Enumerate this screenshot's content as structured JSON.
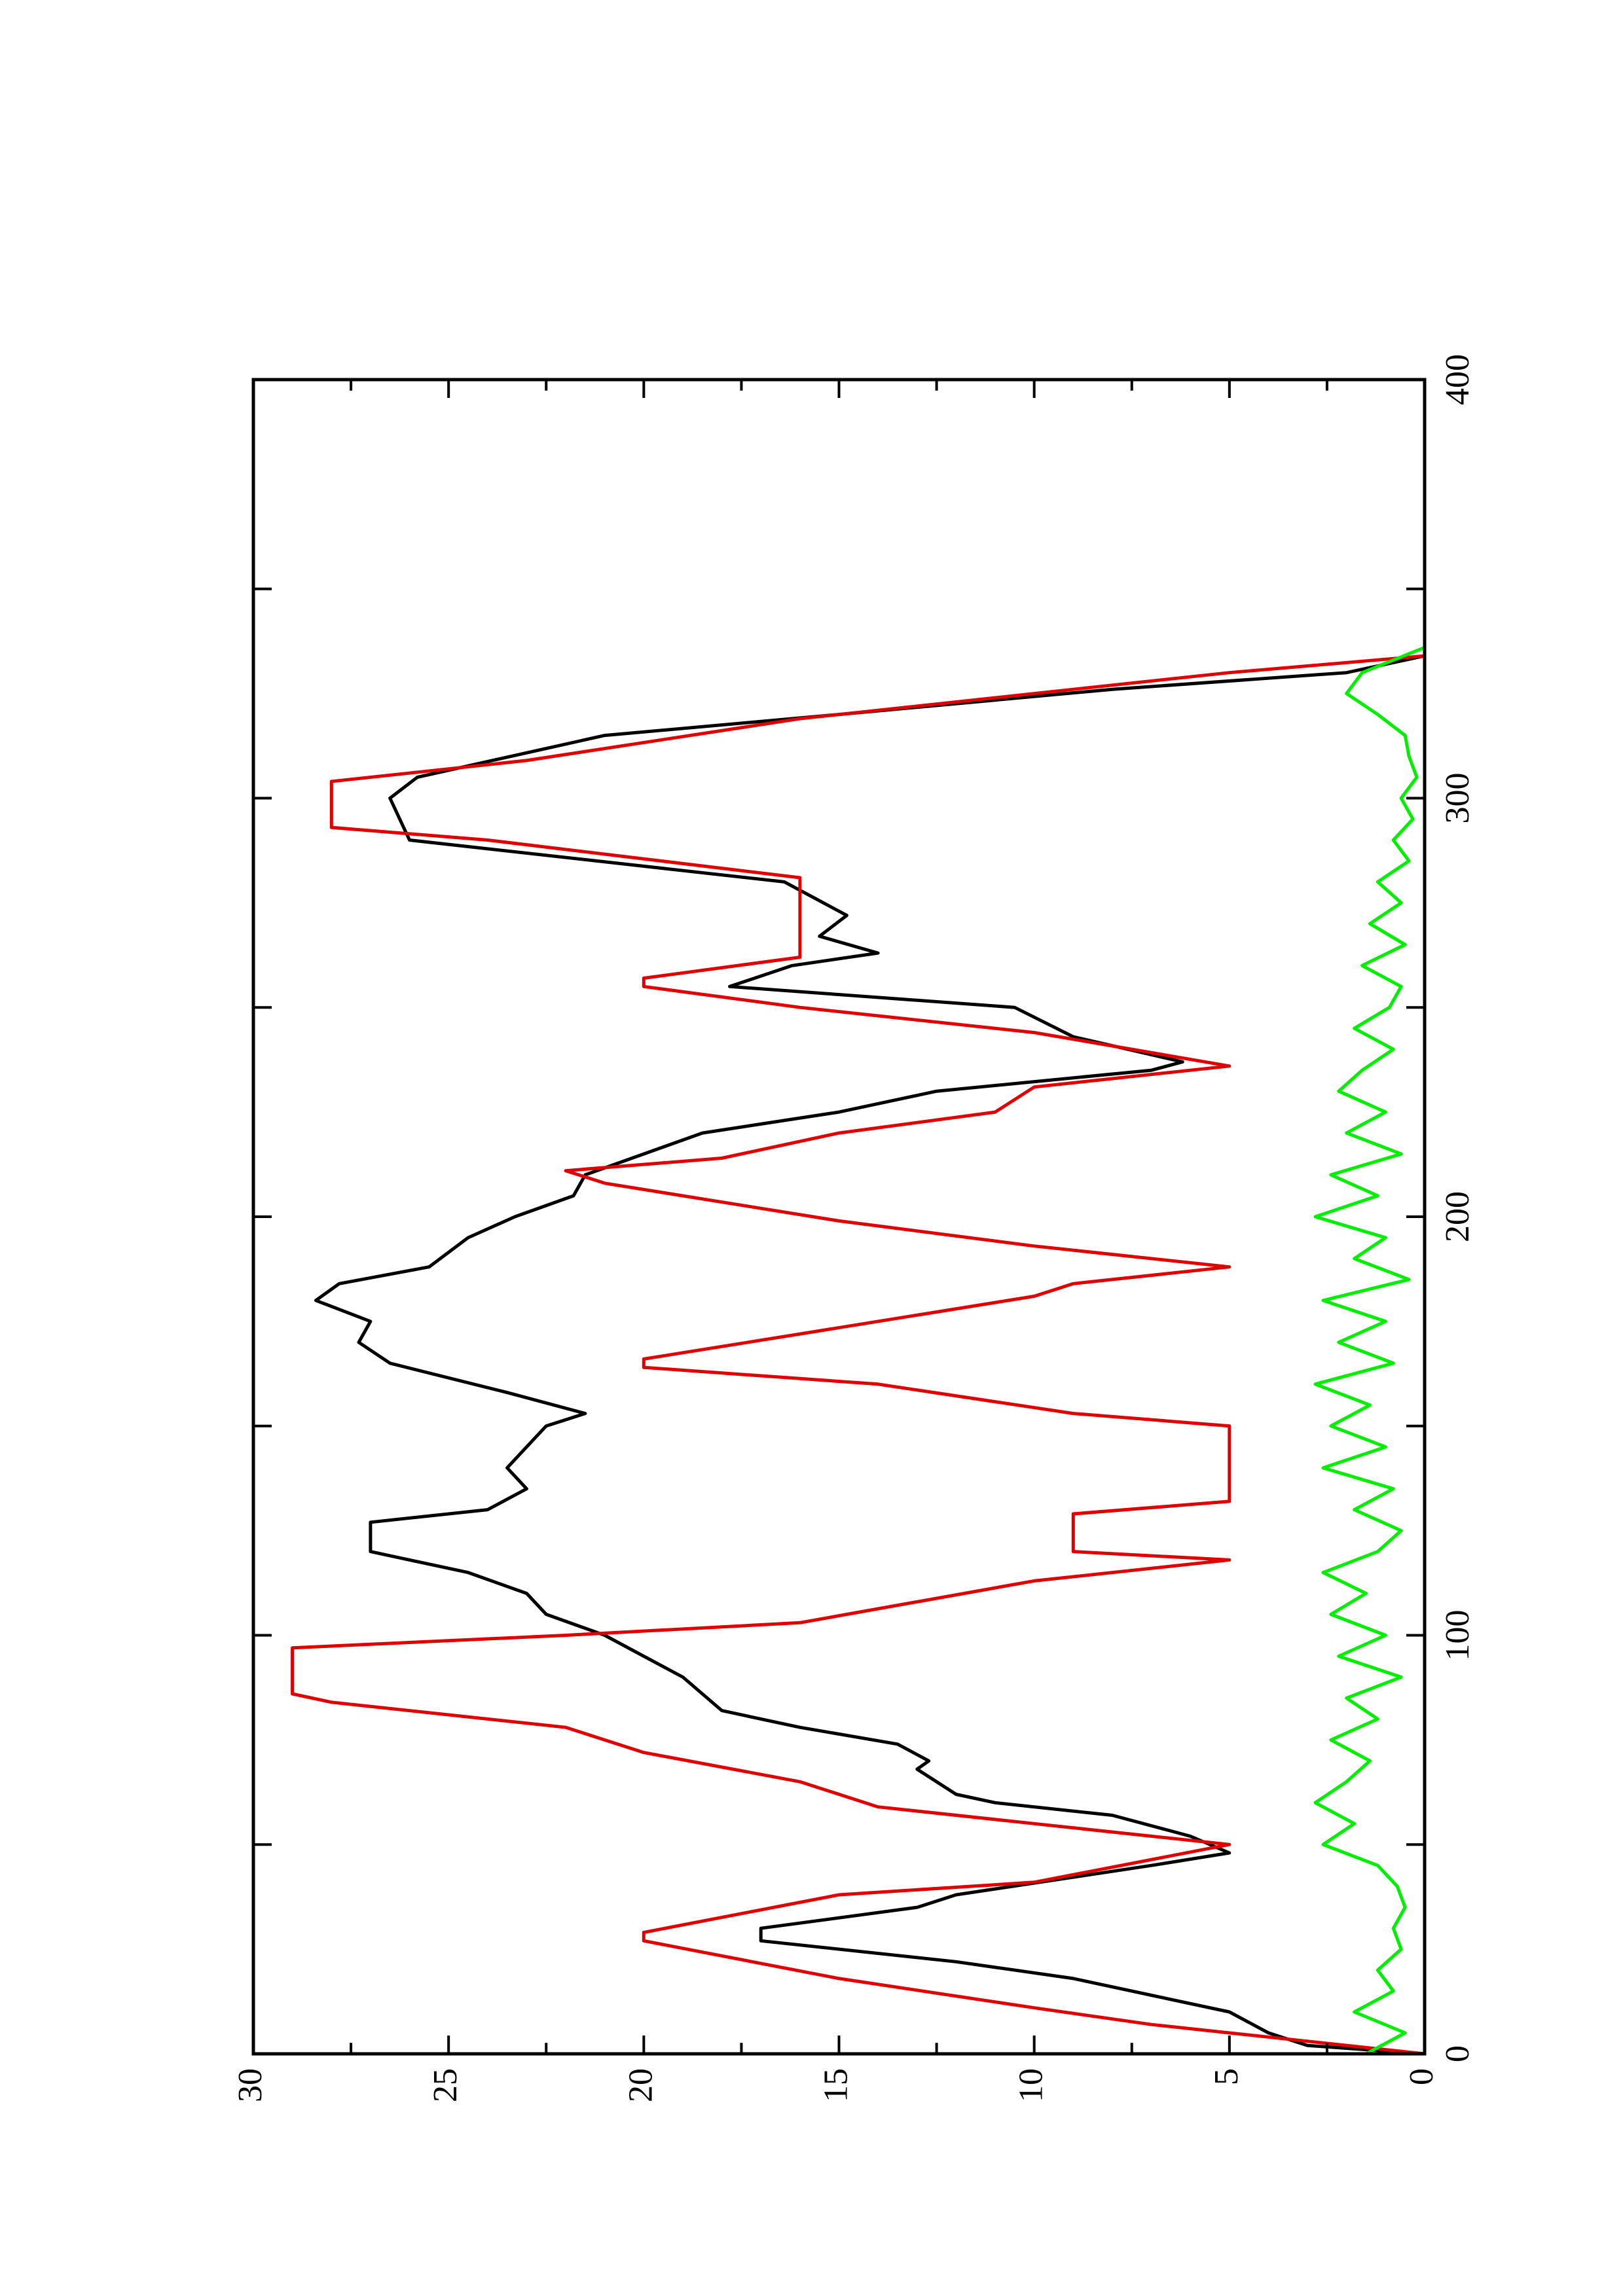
{
  "chart_data": {
    "type": "line",
    "xlim": [
      0,
      400
    ],
    "xticks": [
      0,
      100,
      200,
      300,
      400
    ],
    "xminor_ticks": [
      50,
      150,
      250,
      350
    ],
    "ylim": [
      0,
      30
    ],
    "yticks": [
      0,
      5,
      10,
      15,
      20,
      25,
      30
    ],
    "yminor_ticks": [
      2.5,
      7.5,
      12.5,
      17.5,
      22.5,
      27.5
    ],
    "rotation": -90,
    "series": [
      {
        "color": "#000000",
        "x": [
          0,
          2,
          5,
          10,
          14,
          18,
          22,
          27,
          30,
          35,
          38,
          45,
          48,
          52,
          57,
          60,
          62,
          68,
          70,
          74,
          78,
          82,
          90,
          95,
          100,
          105,
          110,
          115,
          120,
          127,
          130,
          135,
          140,
          145,
          150,
          153,
          158,
          165,
          170,
          175,
          180,
          184,
          188,
          195,
          200,
          205,
          210,
          215,
          220,
          225,
          230,
          235,
          237,
          243,
          250,
          255,
          260,
          263,
          267,
          272,
          276,
          280,
          290,
          300,
          305,
          315,
          320,
          326,
          330,
          334
        ],
        "values": [
          0,
          3,
          4,
          5,
          7,
          9,
          12,
          17,
          17,
          13,
          12,
          7,
          5,
          6,
          8,
          11,
          12,
          13,
          12.7,
          13.5,
          16,
          18,
          19,
          20,
          21,
          22.5,
          23,
          24.5,
          27,
          27,
          24,
          23,
          23.5,
          23,
          22.5,
          21.5,
          23.5,
          26.5,
          27.3,
          27,
          28.4,
          27.8,
          25.5,
          24.5,
          23.3,
          21.8,
          21.5,
          20,
          18.5,
          15,
          12.5,
          7,
          6.2,
          9,
          10.5,
          17.8,
          16.2,
          14,
          15.5,
          14.8,
          15.6,
          16.4,
          26,
          26.5,
          25.8,
          21,
          15,
          8,
          2,
          0
        ]
      },
      {
        "color": "#e00000",
        "x": [
          0,
          5,
          7,
          11,
          18,
          27,
          29,
          38,
          41,
          50,
          55,
          59,
          65,
          72,
          78,
          84,
          86,
          97,
          100,
          103,
          113,
          118,
          120,
          123,
          129,
          132,
          150,
          153,
          160,
          164,
          166,
          172,
          181,
          184,
          188,
          193,
          199,
          208,
          211,
          214,
          220,
          225,
          231,
          236,
          244,
          250,
          255,
          257,
          262,
          281,
          290,
          293,
          304,
          309,
          319,
          330,
          334
        ],
        "values": [
          0,
          5,
          7,
          10,
          15,
          20,
          20,
          15,
          10,
          5,
          10,
          14,
          16,
          20,
          22,
          28,
          29,
          29,
          22,
          16,
          10,
          5,
          9,
          9,
          9,
          5,
          5,
          9,
          14,
          20,
          20,
          16,
          10,
          9,
          5,
          10,
          15,
          21,
          22,
          18,
          15,
          11,
          10,
          5,
          10,
          16,
          20,
          20,
          16,
          16,
          24,
          28,
          28,
          23,
          16,
          5,
          0
        ]
      },
      {
        "color": "#00ee00",
        "x": [
          0,
          5,
          10,
          15,
          20,
          25,
          30,
          35,
          40,
          45,
          50,
          55,
          60,
          65,
          70,
          75,
          80,
          85,
          90,
          95,
          100,
          105,
          110,
          115,
          120,
          125,
          130,
          135,
          140,
          145,
          150,
          155,
          160,
          165,
          170,
          175,
          180,
          185,
          190,
          195,
          200,
          205,
          210,
          215,
          220,
          225,
          230,
          235,
          240,
          245,
          250,
          255,
          260,
          265,
          270,
          275,
          280,
          285,
          290,
          295,
          300,
          305,
          310,
          315,
          320,
          325,
          330,
          336
        ],
        "values": [
          1.5,
          0.5,
          1.8,
          0.8,
          1.2,
          0.6,
          0.8,
          0.5,
          0.7,
          1.2,
          2.6,
          1.8,
          2.8,
          2.0,
          1.4,
          2.4,
          1.2,
          2.0,
          0.6,
          2.2,
          1.0,
          2.4,
          1.5,
          2.6,
          1.2,
          0.6,
          1.8,
          0.8,
          2.6,
          1.0,
          2.4,
          1.4,
          2.8,
          0.8,
          2.2,
          1.0,
          2.6,
          0.4,
          1.8,
          1.0,
          2.8,
          1.2,
          2.4,
          0.6,
          2.0,
          1.0,
          2.2,
          1.6,
          0.8,
          1.8,
          0.9,
          0.6,
          1.6,
          0.5,
          1.4,
          0.6,
          1.2,
          0.4,
          0.8,
          0.3,
          0.6,
          0.2,
          0.4,
          0.5,
          1.2,
          2.0,
          1.6,
          0
        ]
      }
    ]
  }
}
